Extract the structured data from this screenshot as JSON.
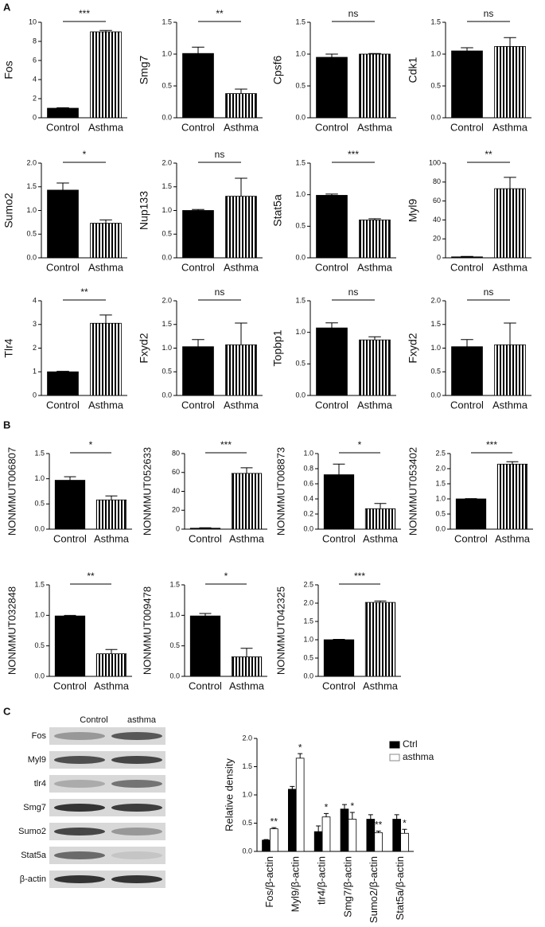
{
  "panel_labels": [
    "A",
    "B",
    "C"
  ],
  "chart_data": [
    {
      "type": "bar",
      "ylabel": "Fos",
      "categories": [
        "Control",
        "Asthma"
      ],
      "values": [
        1,
        9
      ],
      "errors": [
        0.05,
        0.15
      ],
      "fills": [
        "solid",
        "striped"
      ],
      "significance": "***",
      "ylim": [
        0,
        10
      ],
      "yticks": [
        0,
        2,
        4,
        6,
        8,
        10
      ]
    },
    {
      "type": "bar",
      "ylabel": "Smg7",
      "categories": [
        "Control",
        "Asthma"
      ],
      "values": [
        1.01,
        0.38
      ],
      "errors": [
        0.1,
        0.07
      ],
      "fills": [
        "solid",
        "striped"
      ],
      "significance": "**",
      "ylim": [
        0,
        1.5
      ],
      "yticks": [
        {
          "value": 0,
          "label": "0.0"
        },
        0.5,
        {
          "value": 1,
          "label": "1.0"
        },
        1.5
      ]
    },
    {
      "type": "bar",
      "ylabel": "Cpsf6",
      "categories": [
        "Control",
        "Asthma"
      ],
      "values": [
        0.95,
        1.0
      ],
      "errors": [
        0.05,
        0.01
      ],
      "fills": [
        "solid",
        "striped"
      ],
      "significance": "ns",
      "ylim": [
        0,
        1.5
      ],
      "yticks": [
        {
          "value": 0,
          "label": "0.0"
        },
        0.5,
        {
          "value": 1,
          "label": "1.0"
        },
        1.5
      ]
    },
    {
      "type": "bar",
      "ylabel": "Cdk1",
      "categories": [
        "Control",
        "Asthma"
      ],
      "values": [
        1.05,
        1.12
      ],
      "errors": [
        0.05,
        0.14
      ],
      "fills": [
        "solid",
        "striped"
      ],
      "significance": "ns",
      "ylim": [
        0,
        1.5
      ],
      "yticks": [
        {
          "value": 0,
          "label": "0.0"
        },
        0.5,
        {
          "value": 1,
          "label": "1.0"
        },
        1.5
      ]
    },
    {
      "type": "bar",
      "ylabel": "Sumo2",
      "categories": [
        "Control",
        "Asthma"
      ],
      "values": [
        1.43,
        0.73
      ],
      "errors": [
        0.15,
        0.07
      ],
      "fills": [
        "solid",
        "striped"
      ],
      "significance": "*",
      "ylim": [
        0,
        2
      ],
      "yticks": [
        {
          "value": 0,
          "label": "0.0"
        },
        0.5,
        {
          "value": 1,
          "label": "1.0"
        },
        1.5,
        {
          "value": 2,
          "label": "2.0"
        }
      ]
    },
    {
      "type": "bar",
      "ylabel": "Nup133",
      "categories": [
        "Control",
        "Asthma"
      ],
      "values": [
        1.0,
        1.3
      ],
      "errors": [
        0.02,
        0.38
      ],
      "fills": [
        "solid",
        "striped"
      ],
      "significance": "ns",
      "ylim": [
        0,
        2
      ],
      "yticks": [
        {
          "value": 0,
          "label": "0.0"
        },
        0.5,
        {
          "value": 1,
          "label": "1.0"
        },
        1.5,
        {
          "value": 2,
          "label": "2.0"
        }
      ]
    },
    {
      "type": "bar",
      "ylabel": "Stat5a",
      "categories": [
        "Control",
        "Asthma"
      ],
      "values": [
        0.99,
        0.6
      ],
      "errors": [
        0.02,
        0.02
      ],
      "fills": [
        "solid",
        "striped"
      ],
      "significance": "***",
      "ylim": [
        0,
        1.5
      ],
      "yticks": [
        {
          "value": 0,
          "label": "0.0"
        },
        0.5,
        {
          "value": 1,
          "label": "1.0"
        },
        1.5
      ]
    },
    {
      "type": "bar",
      "ylabel": "Myl9",
      "categories": [
        "Control",
        "Asthma"
      ],
      "values": [
        1,
        73
      ],
      "errors": [
        0.5,
        12
      ],
      "fills": [
        "solid",
        "striped"
      ],
      "significance": "**",
      "ylim": [
        0,
        100
      ],
      "yticks": [
        0,
        20,
        40,
        60,
        80,
        100
      ]
    },
    {
      "type": "bar",
      "ylabel": "Tlr4",
      "categories": [
        "Control",
        "Asthma"
      ],
      "values": [
        1.0,
        3.05
      ],
      "errors": [
        0.02,
        0.35
      ],
      "fills": [
        "solid",
        "striped"
      ],
      "significance": "**",
      "ylim": [
        0,
        4
      ],
      "yticks": [
        0,
        1,
        2,
        3,
        4
      ]
    },
    {
      "type": "bar",
      "ylabel": "Fxyd2",
      "categories": [
        "Control",
        "Asthma"
      ],
      "values": [
        1.03,
        1.07
      ],
      "errors": [
        0.15,
        0.46
      ],
      "fills": [
        "solid",
        "striped"
      ],
      "significance": "ns",
      "ylim": [
        0,
        2
      ],
      "yticks": [
        {
          "value": 0,
          "label": "0.0"
        },
        0.5,
        {
          "value": 1,
          "label": "1.0"
        },
        1.5,
        {
          "value": 2,
          "label": "2.0"
        }
      ]
    },
    {
      "type": "bar",
      "ylabel": "Topbp1",
      "categories": [
        "Control",
        "Asthma"
      ],
      "values": [
        1.07,
        0.88
      ],
      "errors": [
        0.08,
        0.05
      ],
      "fills": [
        "solid",
        "striped"
      ],
      "significance": "ns",
      "ylim": [
        0,
        1.5
      ],
      "yticks": [
        {
          "value": 0,
          "label": "0.0"
        },
        0.5,
        {
          "value": 1,
          "label": "1.0"
        },
        1.5
      ]
    },
    {
      "type": "bar",
      "ylabel": "Fxyd2",
      "categories": [
        "Control",
        "Asthma"
      ],
      "values": [
        1.03,
        1.07
      ],
      "errors": [
        0.15,
        0.46
      ],
      "fills": [
        "solid",
        "striped"
      ],
      "significance": "ns",
      "ylim": [
        0,
        2
      ],
      "yticks": [
        {
          "value": 0,
          "label": "0.0"
        },
        0.5,
        {
          "value": 1,
          "label": "1.0"
        },
        1.5,
        {
          "value": 2,
          "label": "2.0"
        }
      ]
    },
    {
      "type": "bar",
      "ylabel": "NONMMUT006807",
      "categories": [
        "Control",
        "Asthma"
      ],
      "values": [
        0.97,
        0.58
      ],
      "errors": [
        0.07,
        0.08
      ],
      "fills": [
        "solid",
        "striped"
      ],
      "significance": "*",
      "ylim": [
        0,
        1.5
      ],
      "yticks": [
        {
          "value": 0,
          "label": "0.0"
        },
        0.5,
        {
          "value": 1,
          "label": "1.0"
        },
        1.5
      ]
    },
    {
      "type": "bar",
      "ylabel": "NONMMUT052633",
      "categories": [
        "Control",
        "Asthma"
      ],
      "values": [
        1,
        59
      ],
      "errors": [
        0.5,
        6
      ],
      "fills": [
        "solid",
        "striped"
      ],
      "significance": "***",
      "ylim": [
        0,
        80
      ],
      "yticks": [
        0,
        20,
        40,
        60,
        80
      ]
    },
    {
      "type": "bar",
      "ylabel": "NONMMUT008873",
      "categories": [
        "Control",
        "Asthma"
      ],
      "values": [
        0.72,
        0.27
      ],
      "errors": [
        0.14,
        0.07
      ],
      "fills": [
        "solid",
        "striped"
      ],
      "significance": "*",
      "ylim": [
        0,
        1
      ],
      "yticks": [
        {
          "value": 0,
          "label": "0.0"
        },
        0.2,
        0.4,
        0.6,
        0.8,
        {
          "value": 1,
          "label": "1.0"
        }
      ]
    },
    {
      "type": "bar",
      "ylabel": "NONMMUT053402",
      "categories": [
        "Control",
        "Asthma"
      ],
      "values": [
        1.0,
        2.15
      ],
      "errors": [
        0.01,
        0.08
      ],
      "fills": [
        "solid",
        "striped"
      ],
      "significance": "***",
      "ylim": [
        0,
        2.5
      ],
      "yticks": [
        {
          "value": 0,
          "label": "0.0"
        },
        0.5,
        {
          "value": 1,
          "label": "1.0"
        },
        1.5,
        {
          "value": 2,
          "label": "2.0"
        },
        2.5
      ]
    },
    {
      "type": "bar",
      "ylabel": "NONMMUT032848",
      "categories": [
        "Control",
        "Asthma"
      ],
      "values": [
        0.99,
        0.37
      ],
      "errors": [
        0.01,
        0.07
      ],
      "fills": [
        "solid",
        "striped"
      ],
      "significance": "**",
      "ylim": [
        0,
        1.5
      ],
      "yticks": [
        {
          "value": 0,
          "label": "0.0"
        },
        0.5,
        {
          "value": 1,
          "label": "1.0"
        },
        1.5
      ]
    },
    {
      "type": "bar",
      "ylabel": "NONMMUT009478",
      "categories": [
        "Control",
        "Asthma"
      ],
      "values": [
        0.99,
        0.32
      ],
      "errors": [
        0.04,
        0.14
      ],
      "fills": [
        "solid",
        "striped"
      ],
      "significance": "*",
      "ylim": [
        0,
        1.5
      ],
      "yticks": [
        {
          "value": 0,
          "label": "0.0"
        },
        0.5,
        {
          "value": 1,
          "label": "1.0"
        },
        1.5
      ]
    },
    {
      "type": "bar",
      "ylabel": "NONMMUT042325",
      "categories": [
        "Control",
        "Asthma"
      ],
      "values": [
        1.0,
        2.02
      ],
      "errors": [
        0.01,
        0.04
      ],
      "fills": [
        "solid",
        "striped"
      ],
      "significance": "***",
      "ylim": [
        0,
        2.5
      ],
      "yticks": [
        {
          "value": 0,
          "label": "0.0"
        },
        0.5,
        {
          "value": 1,
          "label": "1.0"
        },
        1.5,
        {
          "value": 2,
          "label": "2.0"
        },
        2.5
      ]
    },
    {
      "type": "bar",
      "ylabel": "Relative density",
      "categories": [
        "Fos/β-actin",
        "Myl9/β-actin",
        "tlr4/β-actin",
        "Smg7/β-actin",
        "Sumo2/β-actin",
        "Stat5a/β-actin"
      ],
      "series": [
        {
          "name": "Ctrl",
          "color": "#000000",
          "values": [
            0.2,
            1.1,
            0.35,
            0.75,
            0.57,
            0.57
          ],
          "errors": [
            0.01,
            0.05,
            0.1,
            0.08,
            0.08,
            0.08
          ]
        },
        {
          "name": "asthma",
          "color": "#ffffff",
          "values": [
            0.4,
            1.65,
            0.61,
            0.57,
            0.33,
            0.32
          ],
          "errors": [
            0.02,
            0.08,
            0.06,
            0.12,
            0.03,
            0.07
          ],
          "significance": [
            "**",
            "*",
            "*",
            "*",
            "**",
            "*"
          ]
        }
      ],
      "ylim": [
        0,
        2
      ],
      "yticks": [
        {
          "value": 0,
          "label": "0.0"
        },
        0.5,
        {
          "value": 1,
          "label": "1.0"
        },
        1.5,
        {
          "value": 2,
          "label": "2.0"
        }
      ],
      "legend": "top-right"
    }
  ],
  "blot": {
    "columns": [
      "Control",
      "asthma"
    ],
    "rows": [
      "Fos",
      "Myl9",
      "tlr4",
      "Smg7",
      "Sumo2",
      "Stat5a",
      "β-actin"
    ]
  }
}
